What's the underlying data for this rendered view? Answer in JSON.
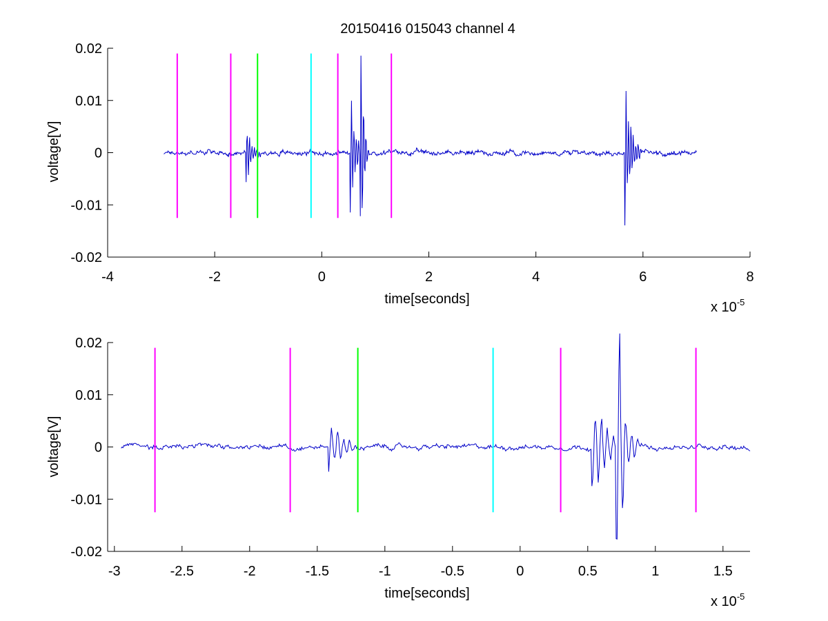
{
  "figure": {
    "title": "20150416 015043 channel 4"
  },
  "colors": {
    "signal": "#0000c8",
    "magenta": "#ff00ff",
    "green": "#00ff00",
    "cyan": "#00ffff"
  },
  "chart_data": [
    {
      "type": "line",
      "title": "20150416 015043 channel 4",
      "xlabel": "time[seconds]",
      "ylabel": "voltage[V]",
      "x_multiplier_label": "x 10",
      "x_multiplier_exp": "-5",
      "xlim": [
        -4,
        8
      ],
      "ylim": [
        -0.02,
        0.02
      ],
      "xticks": [
        -4,
        -2,
        0,
        2,
        4,
        6,
        8
      ],
      "xtick_labels": [
        "-4",
        "-2",
        "0",
        "2",
        "4",
        "6",
        "8"
      ],
      "yticks": [
        -0.02,
        -0.01,
        0,
        0.01,
        0.02
      ],
      "ytick_labels": [
        "-0.02",
        "-0.01",
        "0",
        "0.01",
        "0.02"
      ],
      "signal_range": [
        -2.95,
        7.0
      ],
      "vlines": [
        {
          "x": -2.7,
          "color": "magenta",
          "y": [
            -0.0125,
            0.019
          ]
        },
        {
          "x": -1.7,
          "color": "magenta",
          "y": [
            -0.0125,
            0.019
          ]
        },
        {
          "x": -1.2,
          "color": "green",
          "y": [
            -0.0125,
            0.019
          ]
        },
        {
          "x": -0.2,
          "color": "cyan",
          "y": [
            -0.0125,
            0.019
          ]
        },
        {
          "x": 0.3,
          "color": "magenta",
          "y": [
            -0.0125,
            0.019
          ]
        },
        {
          "x": 1.3,
          "color": "magenta",
          "y": [
            -0.0125,
            0.019
          ]
        }
      ],
      "bursts": [
        {
          "t": -1.4,
          "amp": 0.0045,
          "dur": 0.25
        },
        {
          "t": 0.55,
          "amp": 0.0085,
          "dur": 0.25
        },
        {
          "t": 0.73,
          "amp": 0.0175,
          "dur": 0.15
        },
        {
          "t": 5.68,
          "amp": 0.011,
          "dur": 0.3
        }
      ]
    },
    {
      "type": "line",
      "xlabel": "time[seconds]",
      "ylabel": "voltage[V]",
      "x_multiplier_label": "x 10",
      "x_multiplier_exp": "-5",
      "xlim": [
        -3.05,
        1.7
      ],
      "ylim": [
        -0.02,
        0.02
      ],
      "xticks": [
        -3,
        -2.5,
        -2,
        -1.5,
        -1,
        -0.5,
        0,
        0.5,
        1,
        1.5
      ],
      "xtick_labels": [
        "-3",
        "-2.5",
        "-2",
        "-1.5",
        "-1",
        "-0.5",
        "0",
        "0.5",
        "1",
        "1.5"
      ],
      "yticks": [
        -0.02,
        -0.01,
        0,
        0.01,
        0.02
      ],
      "ytick_labels": [
        "-0.02",
        "-0.01",
        "0",
        "0.01",
        "0.02"
      ],
      "signal_range": [
        -2.95,
        1.7
      ],
      "vlines": [
        {
          "x": -2.7,
          "color": "magenta",
          "y": [
            -0.0125,
            0.019
          ]
        },
        {
          "x": -1.7,
          "color": "magenta",
          "y": [
            -0.0125,
            0.019
          ]
        },
        {
          "x": -1.2,
          "color": "green",
          "y": [
            -0.0125,
            0.019
          ]
        },
        {
          "x": -0.2,
          "color": "cyan",
          "y": [
            -0.0125,
            0.019
          ]
        },
        {
          "x": 0.3,
          "color": "magenta",
          "y": [
            -0.0125,
            0.019
          ]
        },
        {
          "x": 1.3,
          "color": "magenta",
          "y": [
            -0.0125,
            0.019
          ]
        }
      ],
      "bursts": [
        {
          "t": -1.4,
          "amp": 0.0042,
          "dur": 0.25
        },
        {
          "t": 0.55,
          "amp": 0.008,
          "dur": 0.25
        },
        {
          "t": 0.73,
          "amp": 0.0172,
          "dur": 0.15
        }
      ]
    }
  ]
}
